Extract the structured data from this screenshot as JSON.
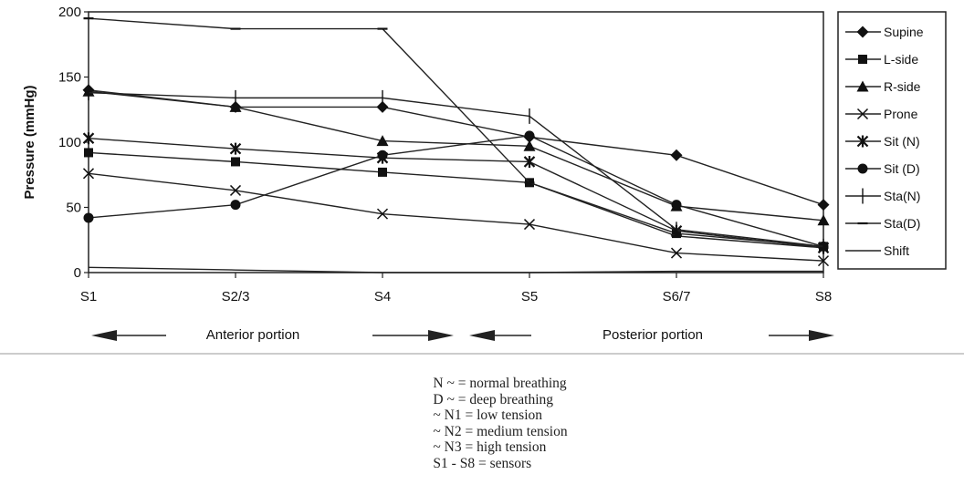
{
  "chart_data": {
    "type": "line",
    "categories": [
      "S1",
      "S2/3",
      "S4",
      "S5",
      "S6/7",
      "S8"
    ],
    "ylabel": "Pressure (mmHg)",
    "xlabel": "",
    "ylim": [
      0,
      200
    ],
    "yticks": [
      "0",
      "50",
      "100",
      "150",
      "200"
    ],
    "grid": false,
    "legend_position": "right",
    "series": [
      {
        "name": "Supine",
        "marker": "diamond",
        "values": [
          140,
          127,
          127,
          104,
          90,
          52
        ]
      },
      {
        "name": "L-side",
        "marker": "square",
        "values": [
          92,
          85,
          77,
          69,
          30,
          20
        ]
      },
      {
        "name": "R-side",
        "marker": "triangle",
        "values": [
          139,
          127,
          101,
          97,
          51,
          40
        ]
      },
      {
        "name": "Prone",
        "marker": "x",
        "values": [
          76,
          63,
          45,
          37,
          15,
          9
        ]
      },
      {
        "name": "Sit (N)",
        "marker": "star",
        "values": [
          103,
          95,
          88,
          85,
          32,
          19
        ]
      },
      {
        "name": "Sit (D)",
        "marker": "circle",
        "values": [
          42,
          52,
          90,
          105,
          52,
          20
        ]
      },
      {
        "name": "Sta(N)",
        "marker": "plus",
        "values": [
          138,
          134,
          134,
          120,
          33,
          20
        ]
      },
      {
        "name": "Sta(D)",
        "marker": "dash",
        "values": [
          195,
          187,
          187,
          69,
          28,
          19
        ]
      },
      {
        "name": "Shift",
        "marker": "none",
        "values": [
          4,
          2,
          0,
          0,
          1,
          1
        ]
      }
    ]
  },
  "portions": {
    "anterior": "Anterior portion",
    "posterior": "Posterior portion"
  },
  "notes": [
    "N ~ = normal breathing",
    "D ~ = deep breathing",
    "~ N1 = low tension",
    "~ N2 = medium tension",
    "~ N3 = high tension",
    "S1 - S8 = sensors"
  ]
}
